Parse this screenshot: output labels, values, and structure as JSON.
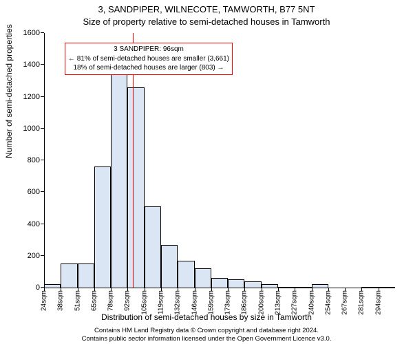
{
  "title_line1": "3, SANDPIPER, WILNECOTE, TAMWORTH, B77 5NT",
  "title_line2": "Size of property relative to semi-detached houses in Tamworth",
  "yaxis_label": "Number of semi-detached properties",
  "xaxis_label": "Distribution of semi-detached houses by size in Tamworth",
  "footer_line1": "Contains HM Land Registry data © Crown copyright and database right 2024.",
  "footer_line2": "Contains public sector information licensed under the Open Government Licence v3.0.",
  "chart": {
    "type": "histogram",
    "ylim": [
      0,
      1600
    ],
    "ytick_step": 200,
    "yticks": [
      0,
      200,
      400,
      600,
      800,
      1000,
      1200,
      1400,
      1600
    ],
    "xticks": [
      "24sqm",
      "38sqm",
      "51sqm",
      "65sqm",
      "78sqm",
      "92sqm",
      "105sqm",
      "119sqm",
      "132sqm",
      "146sqm",
      "159sqm",
      "173sqm",
      "186sqm",
      "200sqm",
      "213sqm",
      "227sqm",
      "240sqm",
      "254sqm",
      "267sqm",
      "281sqm",
      "294sqm"
    ],
    "values": [
      20,
      150,
      150,
      760,
      1340,
      1260,
      510,
      270,
      170,
      120,
      60,
      50,
      40,
      20,
      5,
      5,
      20,
      0,
      0,
      5,
      5
    ],
    "bar_fill": "#dbe6f4",
    "bar_stroke": "#000000",
    "background_color": "#ffffff",
    "marker_value_sqm": 96,
    "marker_color": "#ff0000",
    "annotation_border": "#ff0000",
    "annotation_lines": [
      "3 SANDPIPER: 96sqm",
      "← 81% of semi-detached houses are smaller (3,661)",
      "18% of semi-detached houses are larger (803) →"
    ],
    "title_fontsize": 13,
    "label_fontsize": 12,
    "tick_fontsize": 11,
    "xtick_fontsize": 10,
    "footer_fontsize": 9.5
  }
}
